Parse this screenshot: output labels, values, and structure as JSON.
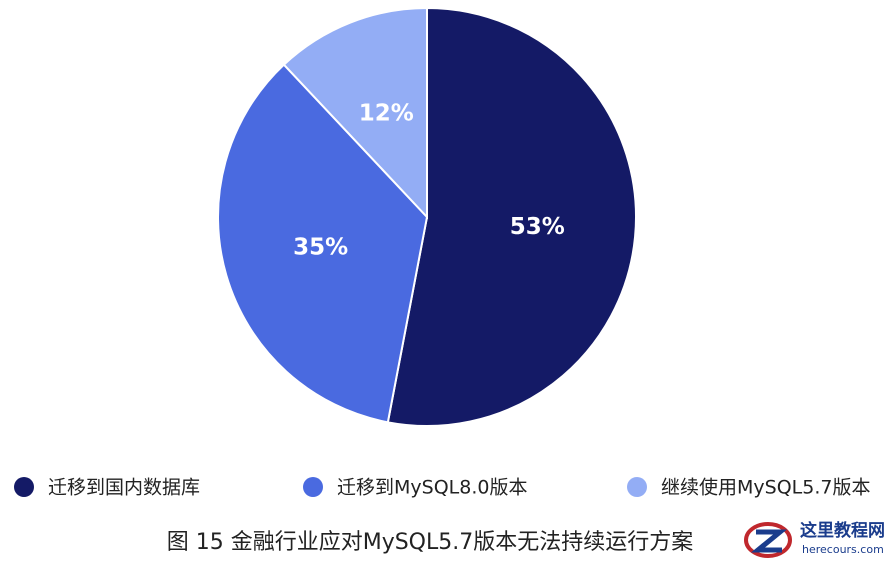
{
  "chart_data": {
    "type": "pie",
    "title": "图 15 金融行业应对MySQL5.7版本无法持续运行方案",
    "categories": [
      "迁移到国内数据库",
      "迁移到MySQL8.0版本",
      "继续使用MySQL5.7版本"
    ],
    "values": [
      53,
      35,
      12
    ],
    "value_labels": [
      "53%",
      "35%",
      "12%"
    ],
    "colors": [
      "#141a66",
      "#4a6ae0",
      "#93adf5"
    ],
    "legend": "bottom"
  },
  "watermark": {
    "name": "这里教程网",
    "url": "herecours.com"
  }
}
